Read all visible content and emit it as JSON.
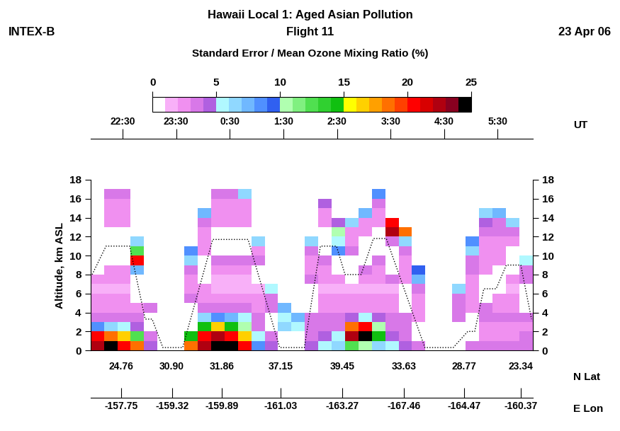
{
  "chart_data": {
    "type": "heatmap",
    "title": "Hawaii Local 1: Aged Asian Pollution",
    "subtitle": "Flight 11",
    "campaign": "INTEX-B",
    "date": "23 Apr 06",
    "y_label": "Altitude, km ASL",
    "x_label": "UT",
    "lat_label": "N Lat",
    "lon_label": "E Lon",
    "xlim": [
      21.9,
      30.15
    ],
    "xticks": [
      {
        "value": 22.5,
        "label": "22:30"
      },
      {
        "value": 23.5,
        "label": "23:30"
      },
      {
        "value": 24.5,
        "label": "0:30"
      },
      {
        "value": 25.5,
        "label": "1:30"
      },
      {
        "value": 26.5,
        "label": "2:30"
      },
      {
        "value": 27.5,
        "label": "3:30"
      },
      {
        "value": 28.5,
        "label": "4:30"
      },
      {
        "value": 29.5,
        "label": "5:30"
      }
    ],
    "ylim": [
      0,
      18
    ],
    "yticks": [
      0,
      2,
      4,
      6,
      8,
      10,
      12,
      14,
      16,
      18
    ],
    "lat_ticks": [
      {
        "value": 22.47,
        "label": "24.76"
      },
      {
        "value": 23.42,
        "label": "30.90"
      },
      {
        "value": 24.35,
        "label": "31.86"
      },
      {
        "value": 25.45,
        "label": "37.15"
      },
      {
        "value": 26.6,
        "label": "39.45"
      },
      {
        "value": 27.75,
        "label": "33.63"
      },
      {
        "value": 28.87,
        "label": "28.77"
      },
      {
        "value": 29.93,
        "label": "23.34"
      }
    ],
    "lon_ticks": [
      {
        "value": 22.47,
        "label": "-157.75"
      },
      {
        "value": 23.42,
        "label": "-159.32"
      },
      {
        "value": 24.35,
        "label": "-159.89"
      },
      {
        "value": 25.45,
        "label": "-161.03"
      },
      {
        "value": 26.6,
        "label": "-163.27"
      },
      {
        "value": 27.75,
        "label": "-167.46"
      },
      {
        "value": 28.87,
        "label": "-164.47"
      },
      {
        "value": 29.93,
        "label": "-160.37"
      }
    ],
    "x_edges": [
      21.9,
      22.15,
      22.4,
      22.65,
      22.9,
      23.15,
      23.4,
      23.65,
      23.9,
      24.15,
      24.4,
      24.65,
      24.9,
      25.15,
      25.4,
      25.65,
      25.9,
      26.15,
      26.4,
      26.65,
      26.9,
      27.15,
      27.4,
      27.65,
      27.9,
      28.15,
      28.4,
      28.65,
      28.9,
      29.15,
      29.4,
      29.65,
      29.9,
      30.15
    ],
    "y_edges": [
      0,
      1,
      2,
      3,
      4,
      5,
      6,
      7,
      8,
      9,
      10,
      11,
      12,
      13,
      14,
      15,
      16,
      17,
      18
    ],
    "cells": [
      [
        22,
        20,
        8,
        3,
        2,
        2,
        1,
        2,
        null,
        null,
        null,
        null,
        null,
        null,
        null,
        null,
        null,
        null
      ],
      [
        24,
        18,
        6,
        3,
        2,
        2,
        1,
        2,
        2,
        null,
        null,
        null,
        null,
        2,
        2,
        2,
        3,
        null
      ],
      [
        20,
        16,
        5,
        3,
        2,
        2,
        1,
        2,
        2,
        null,
        null,
        null,
        null,
        2,
        2,
        2,
        3,
        null
      ],
      [
        18,
        12,
        4,
        3,
        2,
        null,
        null,
        null,
        7,
        20,
        12,
        6,
        null,
        null,
        null,
        null,
        null,
        null
      ],
      [
        4,
        3,
        null,
        null,
        3,
        null,
        null,
        null,
        null,
        null,
        null,
        null,
        null,
        null,
        null,
        null,
        null,
        null
      ],
      [
        null,
        null,
        null,
        null,
        null,
        null,
        null,
        null,
        null,
        null,
        null,
        null,
        null,
        null,
        null,
        null,
        null,
        null
      ],
      [
        null,
        null,
        null,
        null,
        null,
        null,
        null,
        null,
        null,
        null,
        null,
        null,
        null,
        null,
        null,
        null,
        null,
        null
      ],
      [
        18,
        14,
        null,
        null,
        null,
        3,
        2,
        2,
        3,
        6,
        8,
        null,
        null,
        null,
        null,
        null,
        null,
        null
      ],
      [
        22,
        20,
        14,
        6,
        3,
        2,
        2,
        null,
        null,
        null,
        2,
        2,
        2,
        3,
        7,
        null,
        null,
        null
      ],
      [
        24,
        22,
        16,
        8,
        3,
        2,
        1,
        1,
        2,
        3,
        null,
        null,
        null,
        2,
        2,
        2,
        3,
        null
      ],
      [
        24,
        20,
        14,
        7,
        3,
        2,
        1,
        1,
        2,
        3,
        null,
        null,
        null,
        2,
        2,
        2,
        3,
        null
      ],
      [
        20,
        16,
        10,
        5,
        3,
        2,
        1,
        1,
        2,
        3,
        null,
        null,
        null,
        2,
        2,
        2,
        6,
        null
      ],
      [
        8,
        5,
        3,
        3,
        2,
        2,
        1,
        null,
        null,
        3,
        2,
        6,
        null,
        null,
        null,
        null,
        null,
        null
      ],
      [
        4,
        3,
        null,
        null,
        3,
        3,
        5,
        null,
        null,
        null,
        null,
        null,
        null,
        null,
        null,
        null,
        null,
        null
      ],
      [
        null,
        null,
        6,
        5,
        7,
        null,
        null,
        null,
        null,
        null,
        null,
        null,
        null,
        null,
        null,
        null,
        null,
        null
      ],
      [
        null,
        null,
        5,
        7,
        null,
        null,
        null,
        null,
        null,
        null,
        null,
        null,
        null,
        null,
        null,
        null,
        null,
        null
      ],
      [
        4,
        3,
        3,
        3,
        null,
        null,
        null,
        3,
        2,
        2,
        3,
        6,
        null,
        null,
        null,
        null,
        null,
        null
      ],
      [
        5,
        4,
        3,
        3,
        2,
        2,
        1,
        2,
        2,
        3,
        null,
        null,
        null,
        2,
        2,
        4,
        null,
        null
      ],
      [
        6,
        5,
        3,
        3,
        2,
        2,
        1,
        2,
        null,
        null,
        8,
        5,
        10,
        4,
        null,
        null,
        null,
        null
      ],
      [
        12,
        22,
        18,
        4,
        2,
        2,
        1,
        null,
        null,
        null,
        3,
        2,
        2,
        6,
        null,
        null,
        null,
        null
      ],
      [
        10,
        24,
        20,
        5,
        2,
        2,
        1,
        2,
        3,
        null,
        null,
        null,
        2,
        2,
        7,
        null,
        null,
        null
      ],
      [
        6,
        14,
        10,
        4,
        2,
        2,
        1,
        2,
        2,
        3,
        null,
        null,
        null,
        2,
        2,
        3,
        8,
        null
      ],
      [
        5,
        4,
        3,
        3,
        2,
        2,
        1,
        3,
        null,
        null,
        null,
        3,
        22,
        20,
        null,
        null,
        null,
        null
      ],
      [
        4,
        3,
        3,
        3,
        null,
        null,
        null,
        2,
        2,
        2,
        3,
        6,
        18,
        null,
        null,
        null,
        null,
        null
      ],
      [
        3,
        null,
        null,
        2,
        2,
        2,
        3,
        7,
        9,
        null,
        null,
        null,
        null,
        null,
        null,
        null,
        null,
        null
      ],
      [
        null,
        null,
        null,
        null,
        null,
        null,
        null,
        null,
        null,
        null,
        null,
        null,
        null,
        null,
        null,
        null,
        null,
        null
      ],
      [
        null,
        null,
        null,
        null,
        null,
        null,
        null,
        null,
        null,
        null,
        null,
        null,
        null,
        null,
        null,
        null,
        null,
        null
      ],
      [
        null,
        null,
        null,
        3,
        3,
        3,
        6,
        null,
        null,
        null,
        null,
        null,
        null,
        null,
        null,
        null,
        null,
        null
      ],
      [
        3,
        null,
        null,
        null,
        2,
        2,
        2,
        2,
        3,
        3,
        6,
        8,
        null,
        null,
        null,
        null,
        null,
        null
      ],
      [
        3,
        2,
        2,
        3,
        3,
        null,
        null,
        null,
        2,
        2,
        2,
        2,
        3,
        4,
        6,
        null,
        null,
        null
      ],
      [
        3,
        2,
        2,
        3,
        2,
        2,
        null,
        null,
        null,
        2,
        2,
        2,
        3,
        3,
        7,
        null,
        null,
        null
      ],
      [
        3,
        2,
        2,
        3,
        2,
        2,
        1,
        2,
        null,
        null,
        null,
        2,
        3,
        6,
        null,
        null,
        null,
        null
      ],
      [
        3,
        3,
        2,
        3,
        null,
        null,
        null,
        3,
        3,
        5,
        null,
        null,
        null,
        null,
        null,
        null,
        null,
        null
      ]
    ],
    "colorbar": {
      "label": "Standard Error / Mean Ozone Mixing Ratio (%)",
      "range": [
        0,
        25
      ],
      "ticks": [
        0,
        5,
        10,
        15,
        20,
        25
      ]
    },
    "flight_track": {
      "x": [
        21.93,
        22.19,
        22.63,
        22.92,
        23.05,
        23.25,
        23.62,
        24.18,
        24.84,
        25.43,
        25.89,
        26.19,
        26.49,
        26.65,
        26.95,
        27.18,
        27.42,
        28.14,
        28.67,
        28.94,
        29.07,
        29.24,
        29.47,
        29.66,
        29.93,
        30.13
      ],
      "y": [
        8.0,
        11.0,
        11.0,
        3.3,
        3.3,
        0.3,
        0.3,
        11.7,
        11.7,
        0.3,
        0.3,
        11.0,
        11.0,
        8.0,
        8.0,
        11.8,
        11.8,
        0.3,
        0.3,
        2.0,
        2.0,
        6.5,
        6.5,
        9.0,
        9.0,
        3.3
      ],
      "color": "#000000",
      "line_style": "dotted"
    }
  }
}
